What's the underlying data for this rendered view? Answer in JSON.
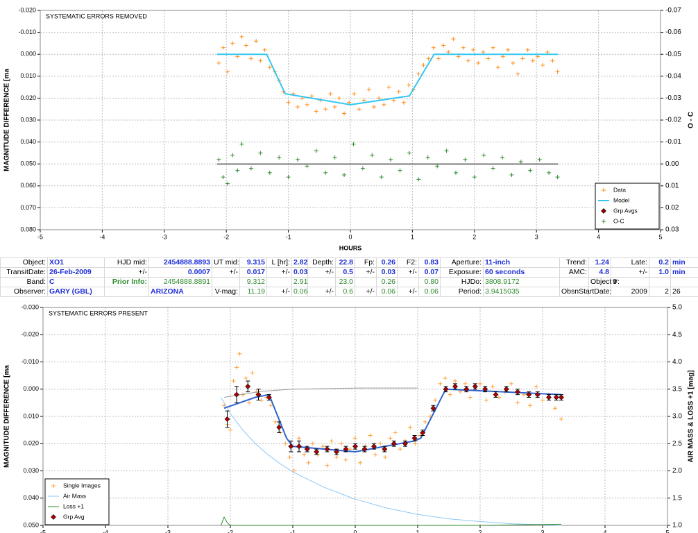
{
  "chart_data": [
    {
      "type": "scatter",
      "title": "SYSTEMATIC ERRORS REMOVED",
      "y_label": "MAGNITUDE DIFFERENCE [ma",
      "y2_label": "O - C",
      "x_label": "HOURS",
      "xlim": [
        -5,
        5
      ],
      "xticks": [
        -5,
        -4,
        -3,
        -2,
        -1,
        0,
        1,
        2,
        3,
        4,
        5
      ],
      "ylim": [
        -0.02,
        0.08
      ],
      "y_reversed": true,
      "yticks": [
        {
          "value": -0.02,
          "label": "-0.020"
        },
        {
          "value": -0.01,
          "label": "-0.010"
        },
        {
          "value": 0,
          "label": "0.000"
        },
        {
          "value": 0.01,
          "label": "0.010"
        },
        {
          "value": 0.02,
          "label": "0.020"
        },
        {
          "value": 0.03,
          "label": "0.030"
        },
        {
          "value": 0.04,
          "label": "0.040"
        },
        {
          "value": 0.05,
          "label": "0.050"
        },
        {
          "value": 0.06,
          "label": "0.060"
        },
        {
          "value": 0.07,
          "label": "0.070"
        },
        {
          "value": 0.08,
          "label": "0.080"
        }
      ],
      "y2lim": [
        -0.07,
        0.03
      ],
      "y2_reversed": true,
      "y2ticks": [
        -0.07,
        -0.06,
        -0.05,
        -0.04,
        -0.03,
        -0.02,
        -0.01,
        {
          "value": 0,
          "label": "0.00"
        },
        0.01,
        0.02,
        0.03
      ],
      "grid": true,
      "legend": "bottom right",
      "series": [
        {
          "name": "Data",
          "color": "#ff8c1a",
          "mark": "plus",
          "x": [
            -2.12,
            -2.05,
            -1.98,
            -1.9,
            -1.82,
            -1.75,
            -1.68,
            -1.6,
            -1.52,
            -1.45,
            -1.38,
            -1.3,
            -1.22,
            -1.15,
            -1.08,
            -1.0,
            -0.92,
            -0.85,
            -0.78,
            -0.7,
            -0.62,
            -0.55,
            -0.48,
            -0.4,
            -0.32,
            -0.25,
            -0.18,
            -0.1,
            -0.02,
            0.06,
            0.14,
            0.22,
            0.3,
            0.38,
            0.46,
            0.54,
            0.62,
            0.7,
            0.78,
            0.86,
            0.94,
            1.02,
            1.1,
            1.18,
            1.26,
            1.34,
            1.42,
            1.5,
            1.58,
            1.66,
            1.74,
            1.82,
            1.9,
            1.98,
            2.06,
            2.14,
            2.22,
            2.3,
            2.38,
            2.46,
            2.54,
            2.62,
            2.7,
            2.78,
            2.86,
            2.94,
            3.02,
            3.1,
            3.18,
            3.26,
            3.34
          ],
          "values": [
            0.004,
            -0.003,
            0.008,
            -0.005,
            0.001,
            -0.008,
            -0.004,
            0.002,
            -0.006,
            0.003,
            -0.002,
            0.006,
            0.008,
            0.012,
            0.017,
            0.022,
            0.018,
            0.024,
            0.02,
            0.023,
            0.019,
            0.026,
            0.021,
            0.025,
            0.018,
            0.024,
            0.02,
            0.027,
            0.022,
            0.018,
            0.025,
            0.021,
            0.016,
            0.024,
            0.02,
            0.023,
            0.015,
            0.021,
            0.017,
            0.022,
            0.014,
            0.016,
            0.009,
            0.005,
            0.002,
            -0.003,
            0.002,
            -0.004,
            -0.001,
            -0.007,
            0.001,
            -0.003,
            0.003,
            -0.002,
            0.004,
            -0.001,
            0.002,
            -0.003,
            0.006,
            0.001,
            -0.002,
            0.004,
            0.009,
            0.002,
            -0.002,
            0.003,
            0.001,
            0.005,
            -0.001,
            0.003,
            0.008
          ]
        },
        {
          "name": "Model",
          "color": "#33c6f0",
          "mark": "line",
          "width": 2,
          "x": [
            -2.15,
            -1.35,
            -1.05,
            0,
            0.95,
            1.35,
            3.35
          ],
          "values": [
            0,
            0,
            0.018,
            0.023,
            0.019,
            0,
            0
          ]
        },
        {
          "name": "Grp Avgs",
          "color": "#990000",
          "mark": "diamond",
          "x": [],
          "values": []
        },
        {
          "color": "#000000",
          "mark": "line",
          "axis": "y2",
          "x": [
            -2.15,
            3.35
          ],
          "values": [
            0,
            0
          ]
        },
        {
          "name": "O-C",
          "color": "#2e8b2e",
          "mark": "plus",
          "axis": "y2",
          "x": [
            -2.12,
            -2.05,
            -1.98,
            -1.9,
            -1.82,
            -1.75,
            -1.6,
            -1.45,
            -1.3,
            -1.15,
            -1.0,
            -0.85,
            -0.7,
            -0.55,
            -0.4,
            -0.25,
            -0.1,
            0.05,
            0.2,
            0.35,
            0.5,
            0.65,
            0.8,
            0.95,
            1.1,
            1.25,
            1.4,
            1.55,
            1.7,
            1.85,
            2.0,
            2.15,
            2.3,
            2.45,
            2.6,
            2.75,
            2.9,
            3.05,
            3.2,
            3.34
          ],
          "values": [
            -0.002,
            0.006,
            0.009,
            -0.004,
            0.003,
            -0.009,
            0.002,
            -0.005,
            0.004,
            -0.003,
            0.006,
            -0.002,
            0.001,
            -0.006,
            0.004,
            -0.003,
            0.005,
            -0.009,
            0.002,
            -0.004,
            0.006,
            -0.002,
            0.003,
            -0.005,
            0.007,
            -0.003,
            0.001,
            -0.006,
            0.004,
            -0.002,
            0.006,
            -0.004,
            0.002,
            -0.003,
            0.005,
            -0.001,
            0.003,
            -0.002,
            0.004,
            0.006
          ]
        }
      ]
    },
    {
      "type": "scatter",
      "title": "SYSTEMATIC ERRORS PRESENT",
      "y_label": "MAGNITUDE DIFFERENCE [ma",
      "y2_label": "AIR MASS & LOSS +1 [mag]",
      "xlim": [
        -5,
        5
      ],
      "xticks": [
        -5,
        -4,
        -3,
        -2,
        -1,
        0,
        1,
        2,
        3,
        4,
        5
      ],
      "ylim": [
        -0.03,
        0.05
      ],
      "y_reversed": true,
      "yticks": [
        {
          "value": -0.03,
          "label": "-0.030"
        },
        {
          "value": -0.02,
          "label": "-0.020"
        },
        {
          "value": -0.01,
          "label": "-0.010"
        },
        {
          "value": 0,
          "label": "0.000"
        },
        {
          "value": 0.01,
          "label": "0.010"
        },
        {
          "value": 0.02,
          "label": "0.020"
        },
        {
          "value": 0.03,
          "label": "0.030"
        },
        {
          "value": 0.04,
          "label": "0.040"
        },
        {
          "value": 0.05,
          "label": "0.050"
        }
      ],
      "y2lim": [
        1,
        5
      ],
      "y2ticks": [
        {
          "value": 1,
          "label": "1.0"
        },
        1.5,
        {
          "value": 2,
          "label": "2.0"
        },
        2.5,
        {
          "value": 3,
          "label": "3.0"
        },
        3.5,
        {
          "value": 4,
          "label": "4.0"
        },
        4.5,
        {
          "value": 5,
          "label": "5.0"
        }
      ],
      "grid": true,
      "legend": "bottom left",
      "series": [
        {
          "name": "Single Images",
          "color": "#ff9f33",
          "mark": "plus",
          "x": [
            -2.1,
            -2.05,
            -2.0,
            -1.95,
            -1.9,
            -1.85,
            -1.8,
            -1.75,
            -1.7,
            -1.65,
            -1.58,
            -1.5,
            -1.42,
            -1.35,
            -1.28,
            -1.2,
            -1.12,
            -1.05,
            -0.98,
            -0.9,
            -0.82,
            -0.75,
            -0.68,
            -0.6,
            -0.52,
            -0.45,
            -0.38,
            -0.3,
            -0.22,
            -0.15,
            -0.08,
            0.0,
            0.08,
            0.16,
            0.24,
            0.32,
            0.4,
            0.48,
            0.56,
            0.64,
            0.72,
            0.8,
            0.88,
            0.96,
            1.04,
            1.12,
            1.2,
            1.28,
            1.36,
            1.44,
            1.52,
            1.6,
            1.68,
            1.76,
            1.84,
            1.92,
            2.0,
            2.1,
            2.2,
            2.3,
            2.4,
            2.5,
            2.6,
            2.7,
            2.8,
            2.9,
            3.0,
            3.1,
            3.2,
            3.3
          ],
          "values": [
            0.006,
            0.013,
            0.015,
            -0.003,
            -0.008,
            -0.013,
            0.002,
            -0.004,
            0.005,
            -0.006,
            0.001,
            0.004,
            0.003,
            0.006,
            0.012,
            0.016,
            0.02,
            0.025,
            0.03,
            0.018,
            0.024,
            0.027,
            0.02,
            0.024,
            0.021,
            0.028,
            0.019,
            0.025,
            0.02,
            0.026,
            0.022,
            0.018,
            0.027,
            0.021,
            0.017,
            0.024,
            0.02,
            0.025,
            0.018,
            0.016,
            0.022,
            0.019,
            0.014,
            0.02,
            0.017,
            0.012,
            0.01,
            0.004,
            -0.002,
            -0.004,
            0.002,
            -0.003,
            0.001,
            -0.002,
            0.003,
            0.0,
            -0.002,
            0.004,
            -0.001,
            0.003,
            0.001,
            -0.002,
            0.005,
            0.002,
            0.006,
            -0.001,
            0.004,
            0.002,
            0.007,
            0.011
          ]
        },
        {
          "color": "#999999",
          "mark": "line",
          "axis": "y2",
          "x": [
            -2.1,
            -1.5,
            -1.0,
            -0.5,
            0,
            0.5,
            1.0
          ],
          "values": [
            3.35,
            3.46,
            3.5,
            3.51,
            3.52,
            3.52,
            3.52
          ]
        },
        {
          "name": "Air Mass",
          "color": "#8ec8f5",
          "mark": "line",
          "axis": "y2",
          "x": [
            -2.15,
            -2.0,
            -1.8,
            -1.6,
            -1.4,
            -1.2,
            -1.0,
            -0.5,
            0,
            0.5,
            1.0,
            1.5,
            2.0,
            2.5,
            3.0,
            3.3
          ],
          "values": [
            3.35,
            3.05,
            2.75,
            2.5,
            2.3,
            2.13,
            1.98,
            1.7,
            1.48,
            1.32,
            1.2,
            1.12,
            1.07,
            1.03,
            1.01,
            1.0
          ]
        },
        {
          "name": "Loss +1",
          "color": "#2e8b2e",
          "mark": "line",
          "axis": "y2",
          "x": [
            -2.15,
            -2.1,
            -2.05,
            -2.0,
            0.8,
            2.0,
            3.3
          ],
          "values": [
            1.0,
            1.15,
            1.05,
            1.0,
            1.0,
            1.0,
            1.02
          ]
        },
        {
          "color": "#2f62d0",
          "mark": "line",
          "width": 2,
          "x": [
            -2.1,
            -1.6,
            -1.38,
            -1.1,
            -1.0,
            0,
            0.95,
            1.05,
            1.45,
            3.3
          ],
          "values": [
            0.007,
            0.003,
            0.002,
            0.018,
            0.021,
            0.023,
            0.019,
            0.018,
            0,
            0.002
          ]
        },
        {
          "name": "Grp Avg",
          "color": "#b30000",
          "mark": "diamond",
          "x": [
            -2.05,
            -1.9,
            -1.72,
            -1.55,
            -1.38,
            -1.22,
            -1.03,
            -0.9,
            -0.77,
            -0.62,
            -0.45,
            -0.3,
            -0.15,
            0.0,
            0.15,
            0.3,
            0.47,
            0.62,
            0.8,
            0.95,
            1.08,
            1.25,
            1.45,
            1.6,
            1.78,
            1.92,
            2.08,
            2.25,
            2.42,
            2.6,
            2.78,
            2.92,
            3.1,
            3.22,
            3.3
          ],
          "values": [
            0.011,
            0.002,
            -0.001,
            0.002,
            0.003,
            0.014,
            0.021,
            0.021,
            0.022,
            0.023,
            0.022,
            0.023,
            0.022,
            0.021,
            0.022,
            0.021,
            0.022,
            0.02,
            0.02,
            0.018,
            0.016,
            0.007,
            0.0,
            -0.001,
            0.0,
            -0.001,
            0.0,
            0.002,
            0.0,
            0.001,
            0.002,
            0.002,
            0.003,
            0.003,
            0.003
          ],
          "errors": [
            0.003,
            0.003,
            0.002,
            0.002,
            0.001,
            0.002,
            0.002,
            0.002,
            0.001,
            0.001,
            0.001,
            0.001,
            0.001,
            0.001,
            0.001,
            0.001,
            0.001,
            0.001,
            0.001,
            0.001,
            0.001,
            0.001,
            0.001,
            0.001,
            0.001,
            0.001,
            0.001,
            0.001,
            0.001,
            0.001,
            0.001,
            0.001,
            0.001,
            0.001,
            0.001
          ]
        }
      ]
    }
  ],
  "table": {
    "rows": [
      [
        "Object:",
        "XO1",
        "HJD mid:",
        "2454888.8893",
        "UT mid:",
        "9.315",
        "L [hr]:",
        "2.82",
        "Depth:",
        "22.8",
        "Fp:",
        "0.26",
        "F2:",
        "0.83",
        "Aperture:",
        "11-inch",
        "Trend:",
        "1.24",
        "Late:",
        "0.2",
        "min"
      ],
      [
        "TransitDate:",
        "26-Feb-2009",
        "+/-",
        "0.0007",
        "+/-",
        "0.017",
        "+/-",
        "0.03",
        "+/-",
        "0.5",
        "+/-",
        "0.03",
        "+/-",
        "0.07",
        "Exposure:",
        "60 seconds",
        "AMC:",
        "4.8",
        "+/-",
        "1.0",
        "min"
      ],
      [
        "Band:",
        "C",
        "Prior Info:",
        "2454888.8891",
        null,
        "9.312",
        null,
        "2.91",
        null,
        "23.0",
        null,
        "0.26",
        null,
        "0.80",
        "HJDo:",
        "3808.9172",
        null,
        "Object #:",
        "9",
        null,
        null
      ],
      [
        "Observer:",
        "GARY (GBL)",
        null,
        "ARIZONA",
        "V-mag:",
        "11.19",
        "+/-",
        "0.06",
        "+/-",
        "0.6",
        "+/-",
        "0.06",
        "+/-",
        "0.06",
        "Period:",
        "3.9415035",
        "ObsnStartDate:",
        null,
        "2009",
        "2",
        "26"
      ]
    ]
  }
}
